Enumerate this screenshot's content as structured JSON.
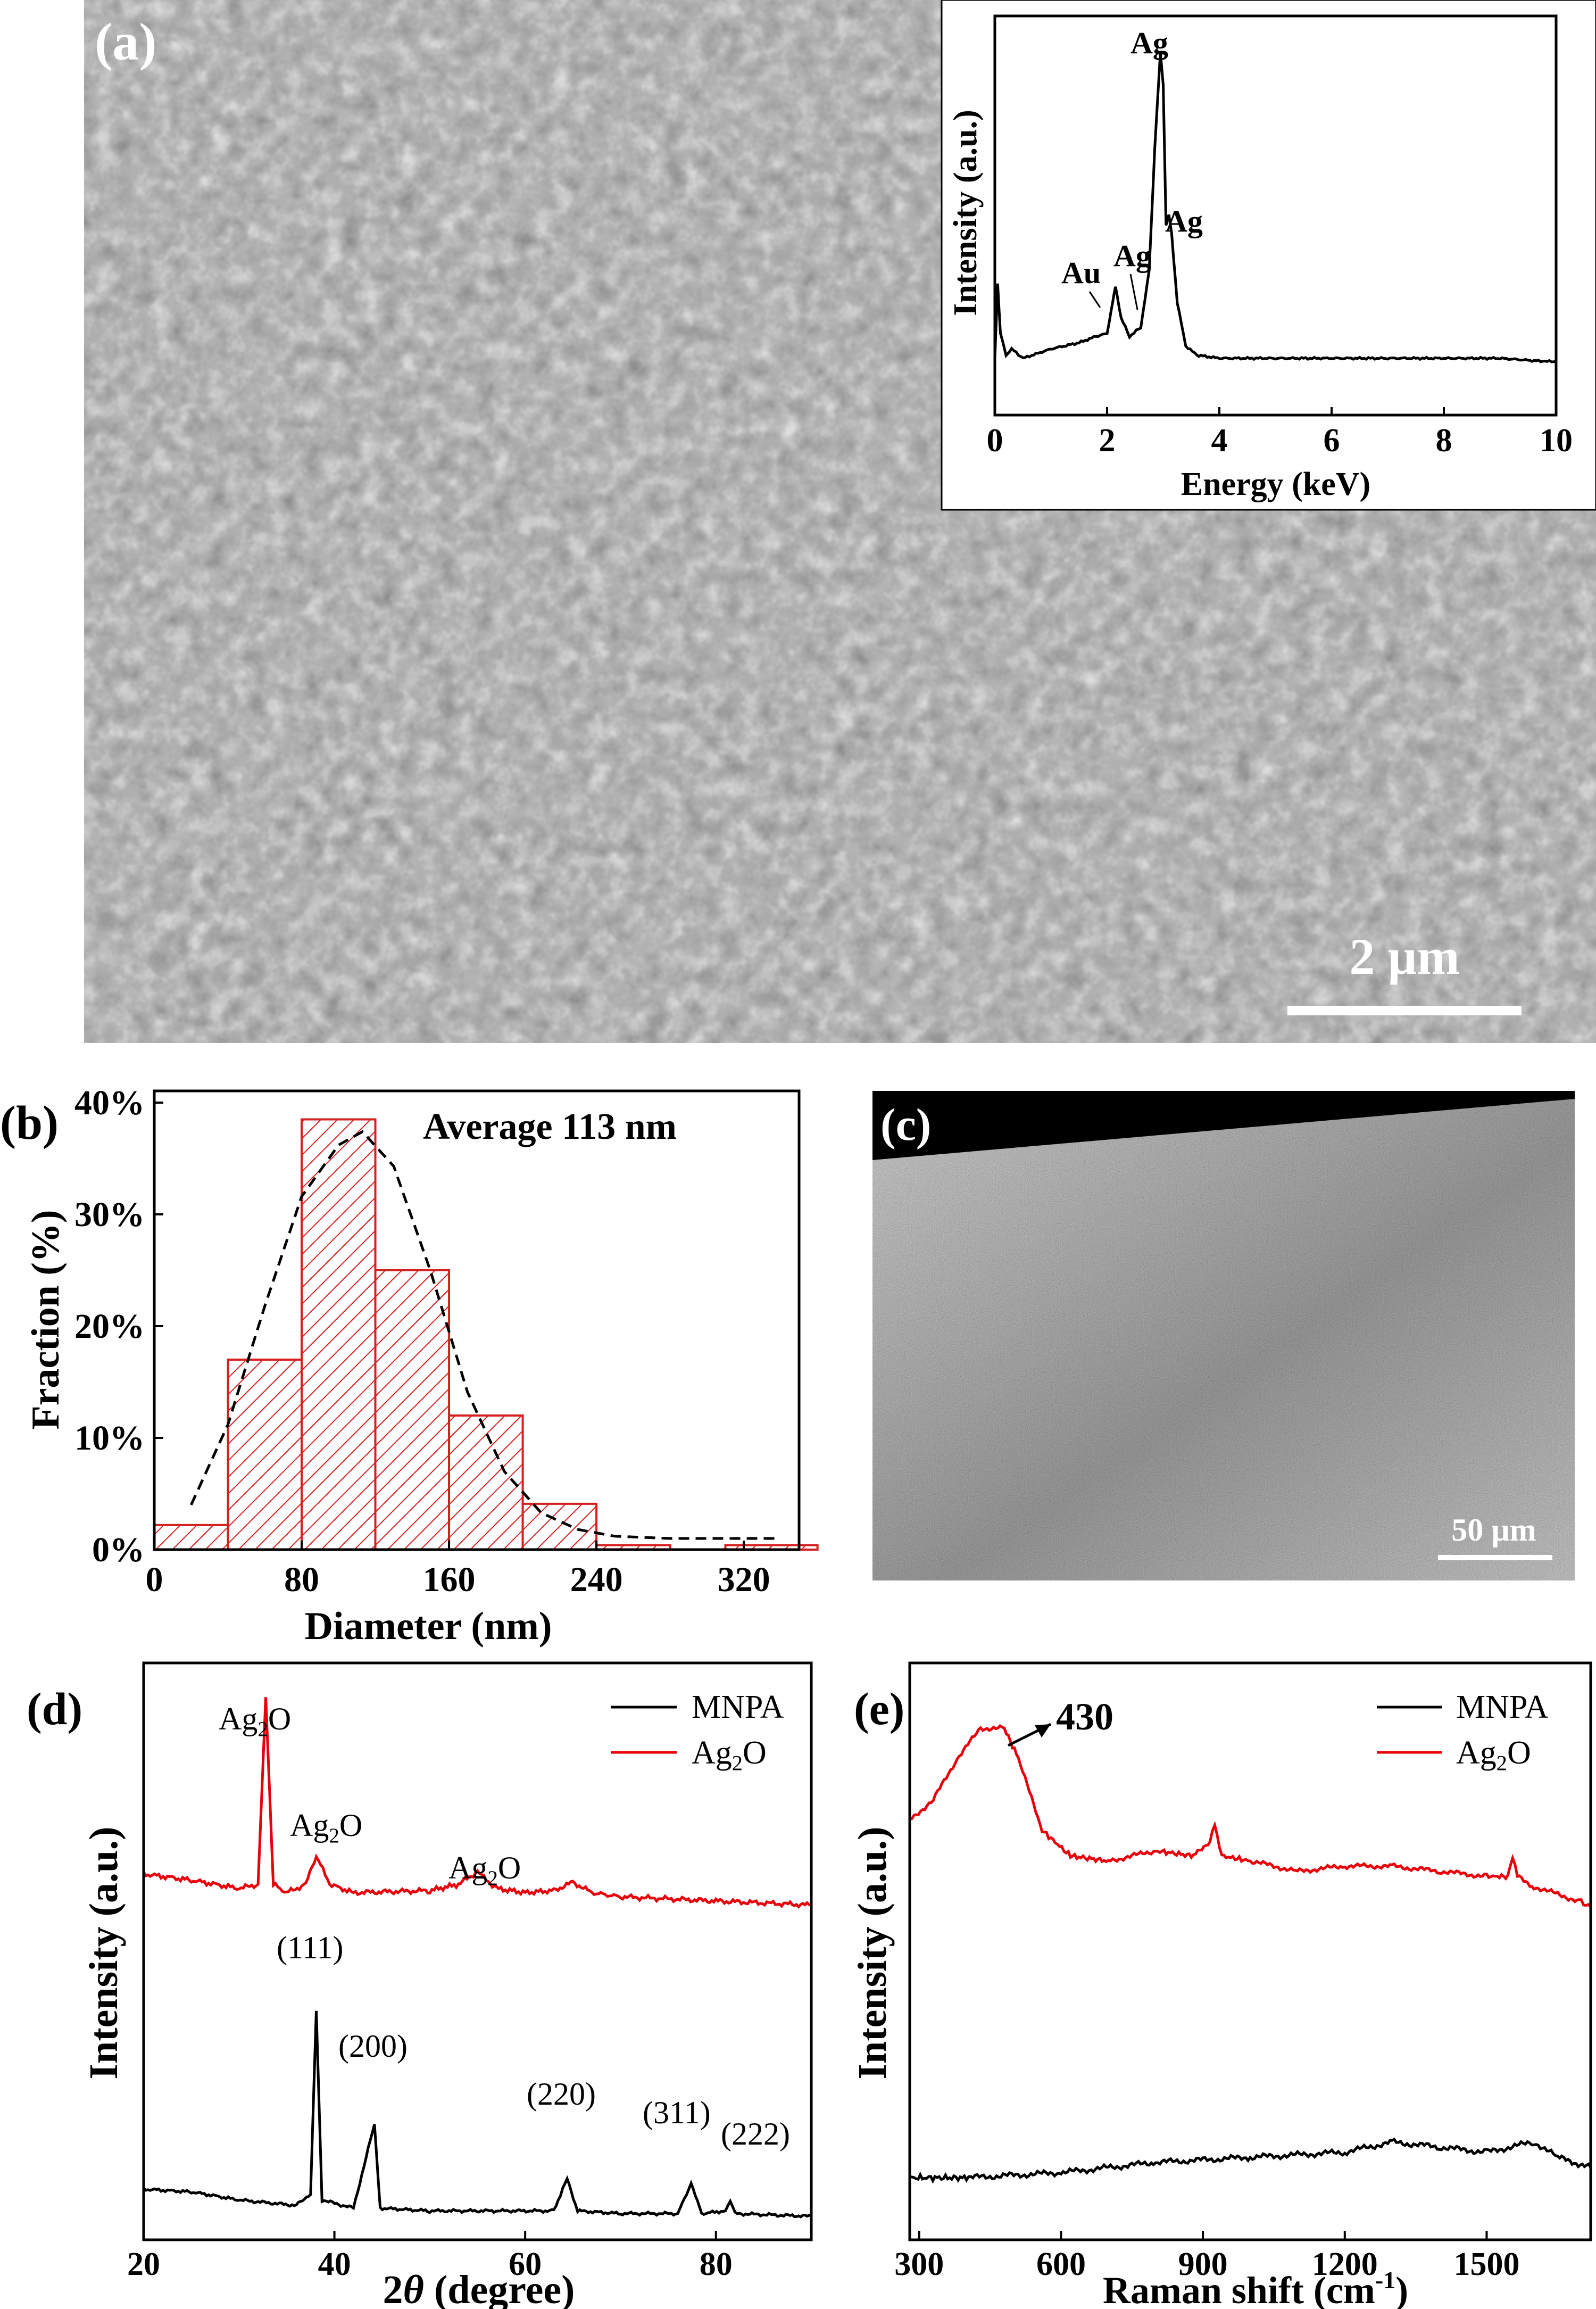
{
  "panels": {
    "a": {
      "label": "(a)",
      "scalebar": "2 µm",
      "inset": {
        "xlabel": "Energy (keV)",
        "ylabel": "Intensity (a.u.)",
        "xticks": [
          "0",
          "2",
          "4",
          "6",
          "8",
          "10"
        ],
        "peak_labels": [
          "Ag",
          "Ag",
          "Au",
          "Ag"
        ]
      }
    },
    "b": {
      "label": "(b)",
      "annotation": "Average 113 nm",
      "xlabel": "Diameter (nm)",
      "ylabel": "Fraction (%)",
      "xticks": [
        "0",
        "80",
        "160",
        "240",
        "320"
      ],
      "yticks": [
        "0%",
        "10%",
        "20%",
        "30%",
        "40%"
      ]
    },
    "c": {
      "label": "(c)",
      "scalebar": "50 µm"
    },
    "d": {
      "label": "(d)",
      "xlabel_theta": "θ",
      "xlabel_prefix": "2",
      "xlabel_suffix": " (degree)",
      "ylabel": "Intensity (a.u.)",
      "xticks": [
        "20",
        "40",
        "60",
        "80"
      ],
      "legend": [
        "MNPA",
        "Ag2O"
      ],
      "peak_labels_ag2o": [
        "Ag2O",
        "Ag2O",
        "Ag2O"
      ],
      "peak_labels_mnpa": [
        "(111)",
        "(200)",
        "(220)",
        "(311)",
        "(222)"
      ]
    },
    "e": {
      "label": "(e)",
      "xlabel": "Raman shift (cm-1)",
      "ylabel": "Intensity (a.u.)",
      "xticks": [
        "300",
        "600",
        "900",
        "1200",
        "1500"
      ],
      "legend": [
        "MNPA",
        "Ag2O"
      ],
      "peak_annotation": "430"
    }
  },
  "colors": {
    "red": "#e8000b",
    "black": "#000000",
    "hist_edge": "#d62020"
  },
  "chart_data": [
    {
      "panel": "a-inset",
      "type": "line",
      "xlabel": "Energy (keV)",
      "ylabel": "Intensity (a.u.)",
      "xlim": [
        0,
        10
      ],
      "x": [
        0,
        0.05,
        0.1,
        0.2,
        0.3,
        0.5,
        1.0,
        1.5,
        1.8,
        2.0,
        2.1,
        2.15,
        2.25,
        2.4,
        2.6,
        2.75,
        2.85,
        2.95,
        3.0,
        3.05,
        3.1,
        3.15,
        3.25,
        3.4,
        3.6,
        4,
        5,
        6,
        7,
        8,
        9,
        9.8,
        10
      ],
      "y": [
        0.02,
        0.26,
        0.1,
        0.03,
        0.05,
        0.02,
        0.05,
        0.07,
        0.09,
        0.1,
        0.2,
        0.25,
        0.15,
        0.09,
        0.12,
        0.3,
        0.7,
        1.0,
        0.9,
        0.45,
        0.48,
        0.42,
        0.2,
        0.06,
        0.03,
        0.02,
        0.02,
        0.02,
        0.02,
        0.02,
        0.02,
        0.01,
        0.01
      ]
    },
    {
      "panel": "b",
      "type": "bar",
      "xlabel": "Diameter (nm)",
      "ylabel": "Fraction (%)",
      "xlim": [
        0,
        350
      ],
      "ylim": [
        0,
        40
      ],
      "bins": [
        [
          0,
          40,
          2.2
        ],
        [
          40,
          80,
          17.0
        ],
        [
          80,
          120,
          38.5
        ],
        [
          120,
          160,
          25.0
        ],
        [
          160,
          200,
          12.0
        ],
        [
          200,
          240,
          4.1
        ],
        [
          240,
          280,
          0.4
        ],
        [
          280,
          310,
          0
        ],
        [
          310,
          360,
          0.4
        ]
      ],
      "fit": {
        "x": [
          20,
          40,
          60,
          80,
          100,
          113,
          130,
          150,
          170,
          190,
          210,
          230,
          250,
          280,
          310,
          340
        ],
        "y": [
          4,
          11.2,
          21.8,
          31.6,
          36.2,
          37.4,
          34.3,
          24.9,
          14.1,
          7.0,
          3.3,
          1.8,
          1.2,
          1.0,
          1.0,
          1.0
        ]
      }
    },
    {
      "panel": "d",
      "type": "line",
      "xlabel": "2θ (degree)",
      "ylabel": "Intensity (a.u.)",
      "xlim": [
        20,
        90
      ],
      "series": [
        {
          "name": "Ag2O",
          "color": "#e8000b",
          "x": [
            20,
            25,
            30,
            32,
            32.8,
            33.6,
            35,
            37,
            38.1,
            39.5,
            42,
            50,
            53,
            55,
            57,
            60,
            63,
            65,
            67,
            70,
            80,
            90
          ],
          "y": [
            105,
            102,
            98,
            100,
            190,
            100,
            96,
            100,
            114,
            100,
            96,
            97,
            100,
            106,
            98,
            96,
            97,
            101,
            96,
            94,
            92,
            90
          ]
        },
        {
          "name": "MNPA",
          "color": "#000000",
          "x": [
            20,
            25,
            30,
            36,
            37.5,
            38.1,
            38.7,
            42,
            44.2,
            44.8,
            50,
            63,
            64.4,
            65.5,
            70,
            76,
            77.4,
            78.5,
            81,
            81.5,
            82,
            90
          ],
          "y": [
            12,
            11,
            8,
            6,
            10,
            78,
            8,
            5,
            36,
            5,
            4,
            4,
            16,
            4,
            3,
            3,
            14,
            3,
            4,
            8,
            3,
            2
          ]
        }
      ]
    },
    {
      "panel": "e",
      "type": "line",
      "xlabel": "Raman shift (cm-1)",
      "ylabel": "Intensity (a.u.)",
      "xlim": [
        280,
        1720
      ],
      "series": [
        {
          "name": "Ag2O",
          "color": "#e8000b",
          "x": [
            280,
            330,
            380,
            430,
            480,
            510,
            560,
            620,
            700,
            800,
            880,
            915,
            925,
            940,
            1000,
            1100,
            1200,
            1300,
            1400,
            1500,
            1545,
            1555,
            1565,
            1600,
            1700,
            1720
          ],
          "y": [
            76,
            80,
            88,
            94,
            94,
            88,
            74,
            69,
            68,
            70,
            69,
            72,
            75,
            69,
            68,
            66,
            67,
            67,
            66,
            65,
            65,
            69,
            65,
            63,
            60,
            59
          ]
        },
        {
          "name": "MNPA",
          "color": "#000000",
          "x": [
            280,
            400,
            600,
            800,
            1000,
            1200,
            1300,
            1400,
            1500,
            1600,
            1650,
            1720
          ],
          "y": [
            6,
            6,
            7,
            9,
            10,
            11,
            13,
            12,
            11,
            13,
            10,
            8
          ]
        }
      ]
    }
  ]
}
